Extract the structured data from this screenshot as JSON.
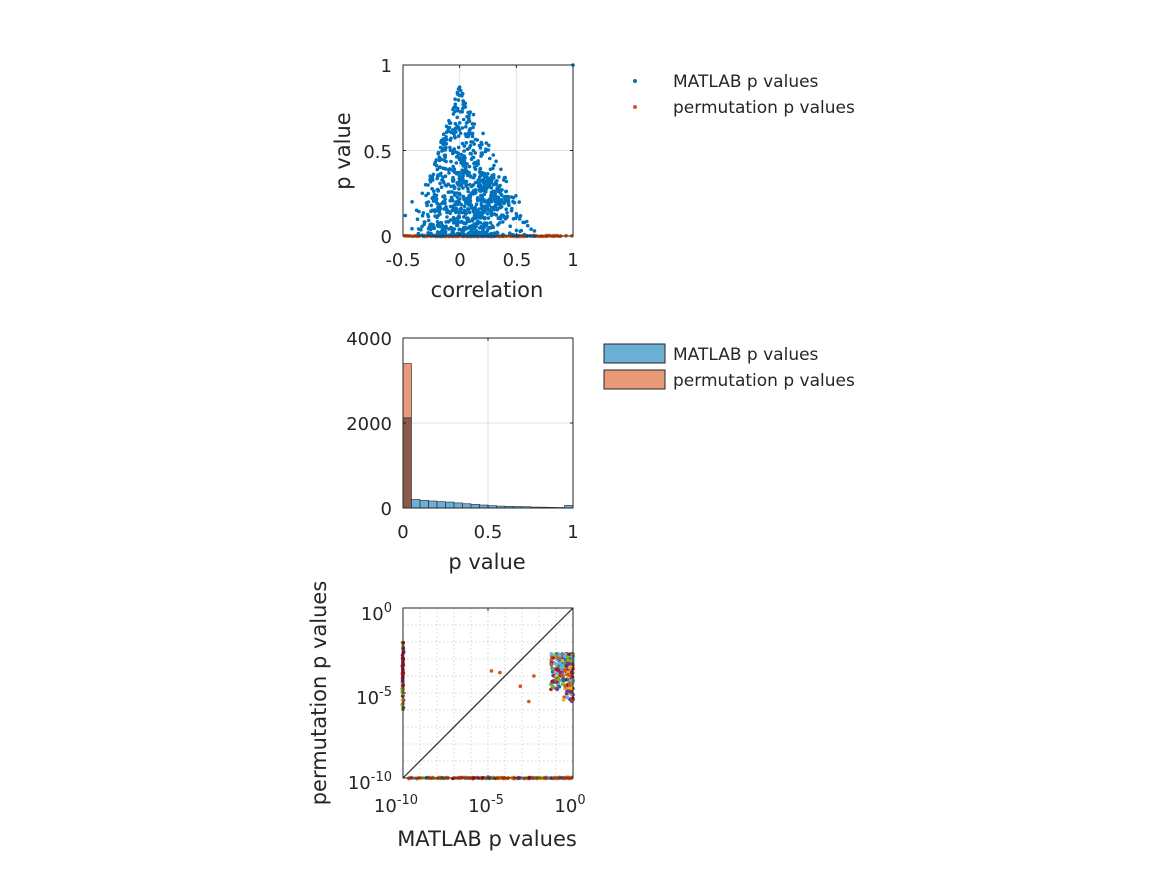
{
  "colors": {
    "matlab": "#0072BD",
    "permutation": "#D95319",
    "matlab_fill": "#6BAED6",
    "permutation_fill": "#E89A78",
    "overlap_fill": "#8C5A4A",
    "grid": "#E0E0E0",
    "axis": "#262626"
  },
  "chart_data": [
    {
      "type": "scatter",
      "xlabel": "correlation",
      "ylabel": "p value",
      "xlim": [
        -0.5,
        1
      ],
      "ylim": [
        0,
        1
      ],
      "xticks": [
        -0.5,
        0,
        0.5,
        1
      ],
      "xtick_labels": [
        "-0.5",
        "0",
        "0.5",
        "1"
      ],
      "yticks": [
        0,
        0.5,
        1
      ],
      "ytick_labels": [
        "0",
        "0.5",
        "1"
      ],
      "grid": true,
      "legend": [
        "MATLAB p values",
        "permutation p values"
      ],
      "legend_placement": "outside-right",
      "series": [
        {
          "name": "MATLAB p values",
          "description": "triangular cloud of points peaking near correlation 0 (p up to ~0.87), p decreasing toward 0 as |correlation| grows, plus isolated point at (1, 1)",
          "x": [
            -0.48,
            -0.42,
            -0.38,
            -0.33,
            -0.3,
            -0.26,
            -0.22,
            -0.18,
            -0.15,
            -0.12,
            -0.1,
            -0.08,
            -0.06,
            -0.04,
            -0.02,
            -0.01,
            0.0,
            0.01,
            0.02,
            0.03,
            0.04,
            0.06,
            0.08,
            0.1,
            0.12,
            0.15,
            0.18,
            0.2,
            0.22,
            0.25,
            0.28,
            0.3,
            0.33,
            0.36,
            0.4,
            0.43,
            0.46,
            0.5,
            0.53,
            0.56,
            0.6,
            0.63,
            0.66,
            1.0
          ],
          "y": [
            0.12,
            0.2,
            0.15,
            0.25,
            0.3,
            0.35,
            0.42,
            0.46,
            0.5,
            0.58,
            0.62,
            0.66,
            0.74,
            0.8,
            0.84,
            0.86,
            0.87,
            0.85,
            0.82,
            0.79,
            0.76,
            0.66,
            0.6,
            0.55,
            0.5,
            0.43,
            0.39,
            0.37,
            0.35,
            0.33,
            0.31,
            0.3,
            0.28,
            0.25,
            0.22,
            0.19,
            0.16,
            0.13,
            0.1,
            0.08,
            0.06,
            0.04,
            0.03,
            1.0
          ]
        },
        {
          "name": "permutation p values",
          "description": "dense row of points at p ≈ 0 spanning correlation -0.5 to 1",
          "x_range": [
            -0.5,
            1
          ],
          "y": 0
        }
      ]
    },
    {
      "type": "bar",
      "subtype": "overlaid histogram",
      "xlabel": "p value",
      "ylabel": "",
      "xlim": [
        0,
        1
      ],
      "ylim": [
        0,
        4000
      ],
      "xticks": [
        0,
        0.5,
        1
      ],
      "xtick_labels": [
        "0",
        "0.5",
        "1"
      ],
      "yticks": [
        0,
        2000,
        4000
      ],
      "ytick_labels": [
        "0",
        "2000",
        "4000"
      ],
      "grid": true,
      "legend": [
        "MATLAB p values",
        "permutation p values"
      ],
      "legend_placement": "outside-right",
      "bin_width": 0.05,
      "bin_edges_start": 0,
      "series": [
        {
          "name": "MATLAB p values",
          "values": [
            2120,
            200,
            180,
            165,
            150,
            140,
            120,
            100,
            85,
            70,
            55,
            45,
            40,
            35,
            30,
            22,
            20,
            15,
            12,
            60
          ]
        },
        {
          "name": "permutation p values",
          "values": [
            3400,
            0,
            0,
            0,
            0,
            0,
            0,
            0,
            0,
            0,
            0,
            0,
            0,
            0,
            0,
            0,
            0,
            0,
            0,
            0
          ]
        }
      ]
    },
    {
      "type": "scatter",
      "scale": "log-log",
      "xlabel": "MATLAB p values",
      "ylabel": "permutation p values",
      "xlim_exp": [
        -10,
        0
      ],
      "ylim_exp": [
        -10,
        0
      ],
      "ticks_exp": [
        -10,
        -5,
        0
      ],
      "tick_base": "10",
      "tick_exponents": [
        "-10",
        "-5",
        "0"
      ],
      "grid": true,
      "reference_line": "y = x",
      "multi_color_series": [
        "#0072BD",
        "#D95319",
        "#EDB120",
        "#7E2F8E",
        "#77AC30",
        "#4DBEEE",
        "#A2142F"
      ],
      "clusters": [
        {
          "description": "vertical stripe at MATLAB p = 1e-10",
          "x_exp": -10,
          "y_exp_range": [
            -6,
            -2
          ]
        },
        {
          "description": "cluster near MATLAB p ~ 1e-1 to 1",
          "x_exp_range": [
            -1.3,
            0
          ],
          "y_exp_range": [
            -5.5,
            -2.8
          ]
        },
        {
          "description": "row at permutation p = 1e-10",
          "x_exp_range": [
            -10,
            0
          ],
          "y_exp": -10
        },
        {
          "description": "isolated points",
          "points_exp": [
            [
              -4.8,
              -3.7
            ],
            [
              -4.3,
              -3.8
            ],
            [
              -3.1,
              -4.6
            ],
            [
              -2.6,
              -5.5
            ],
            [
              -2.3,
              -4.0
            ]
          ]
        }
      ]
    }
  ]
}
